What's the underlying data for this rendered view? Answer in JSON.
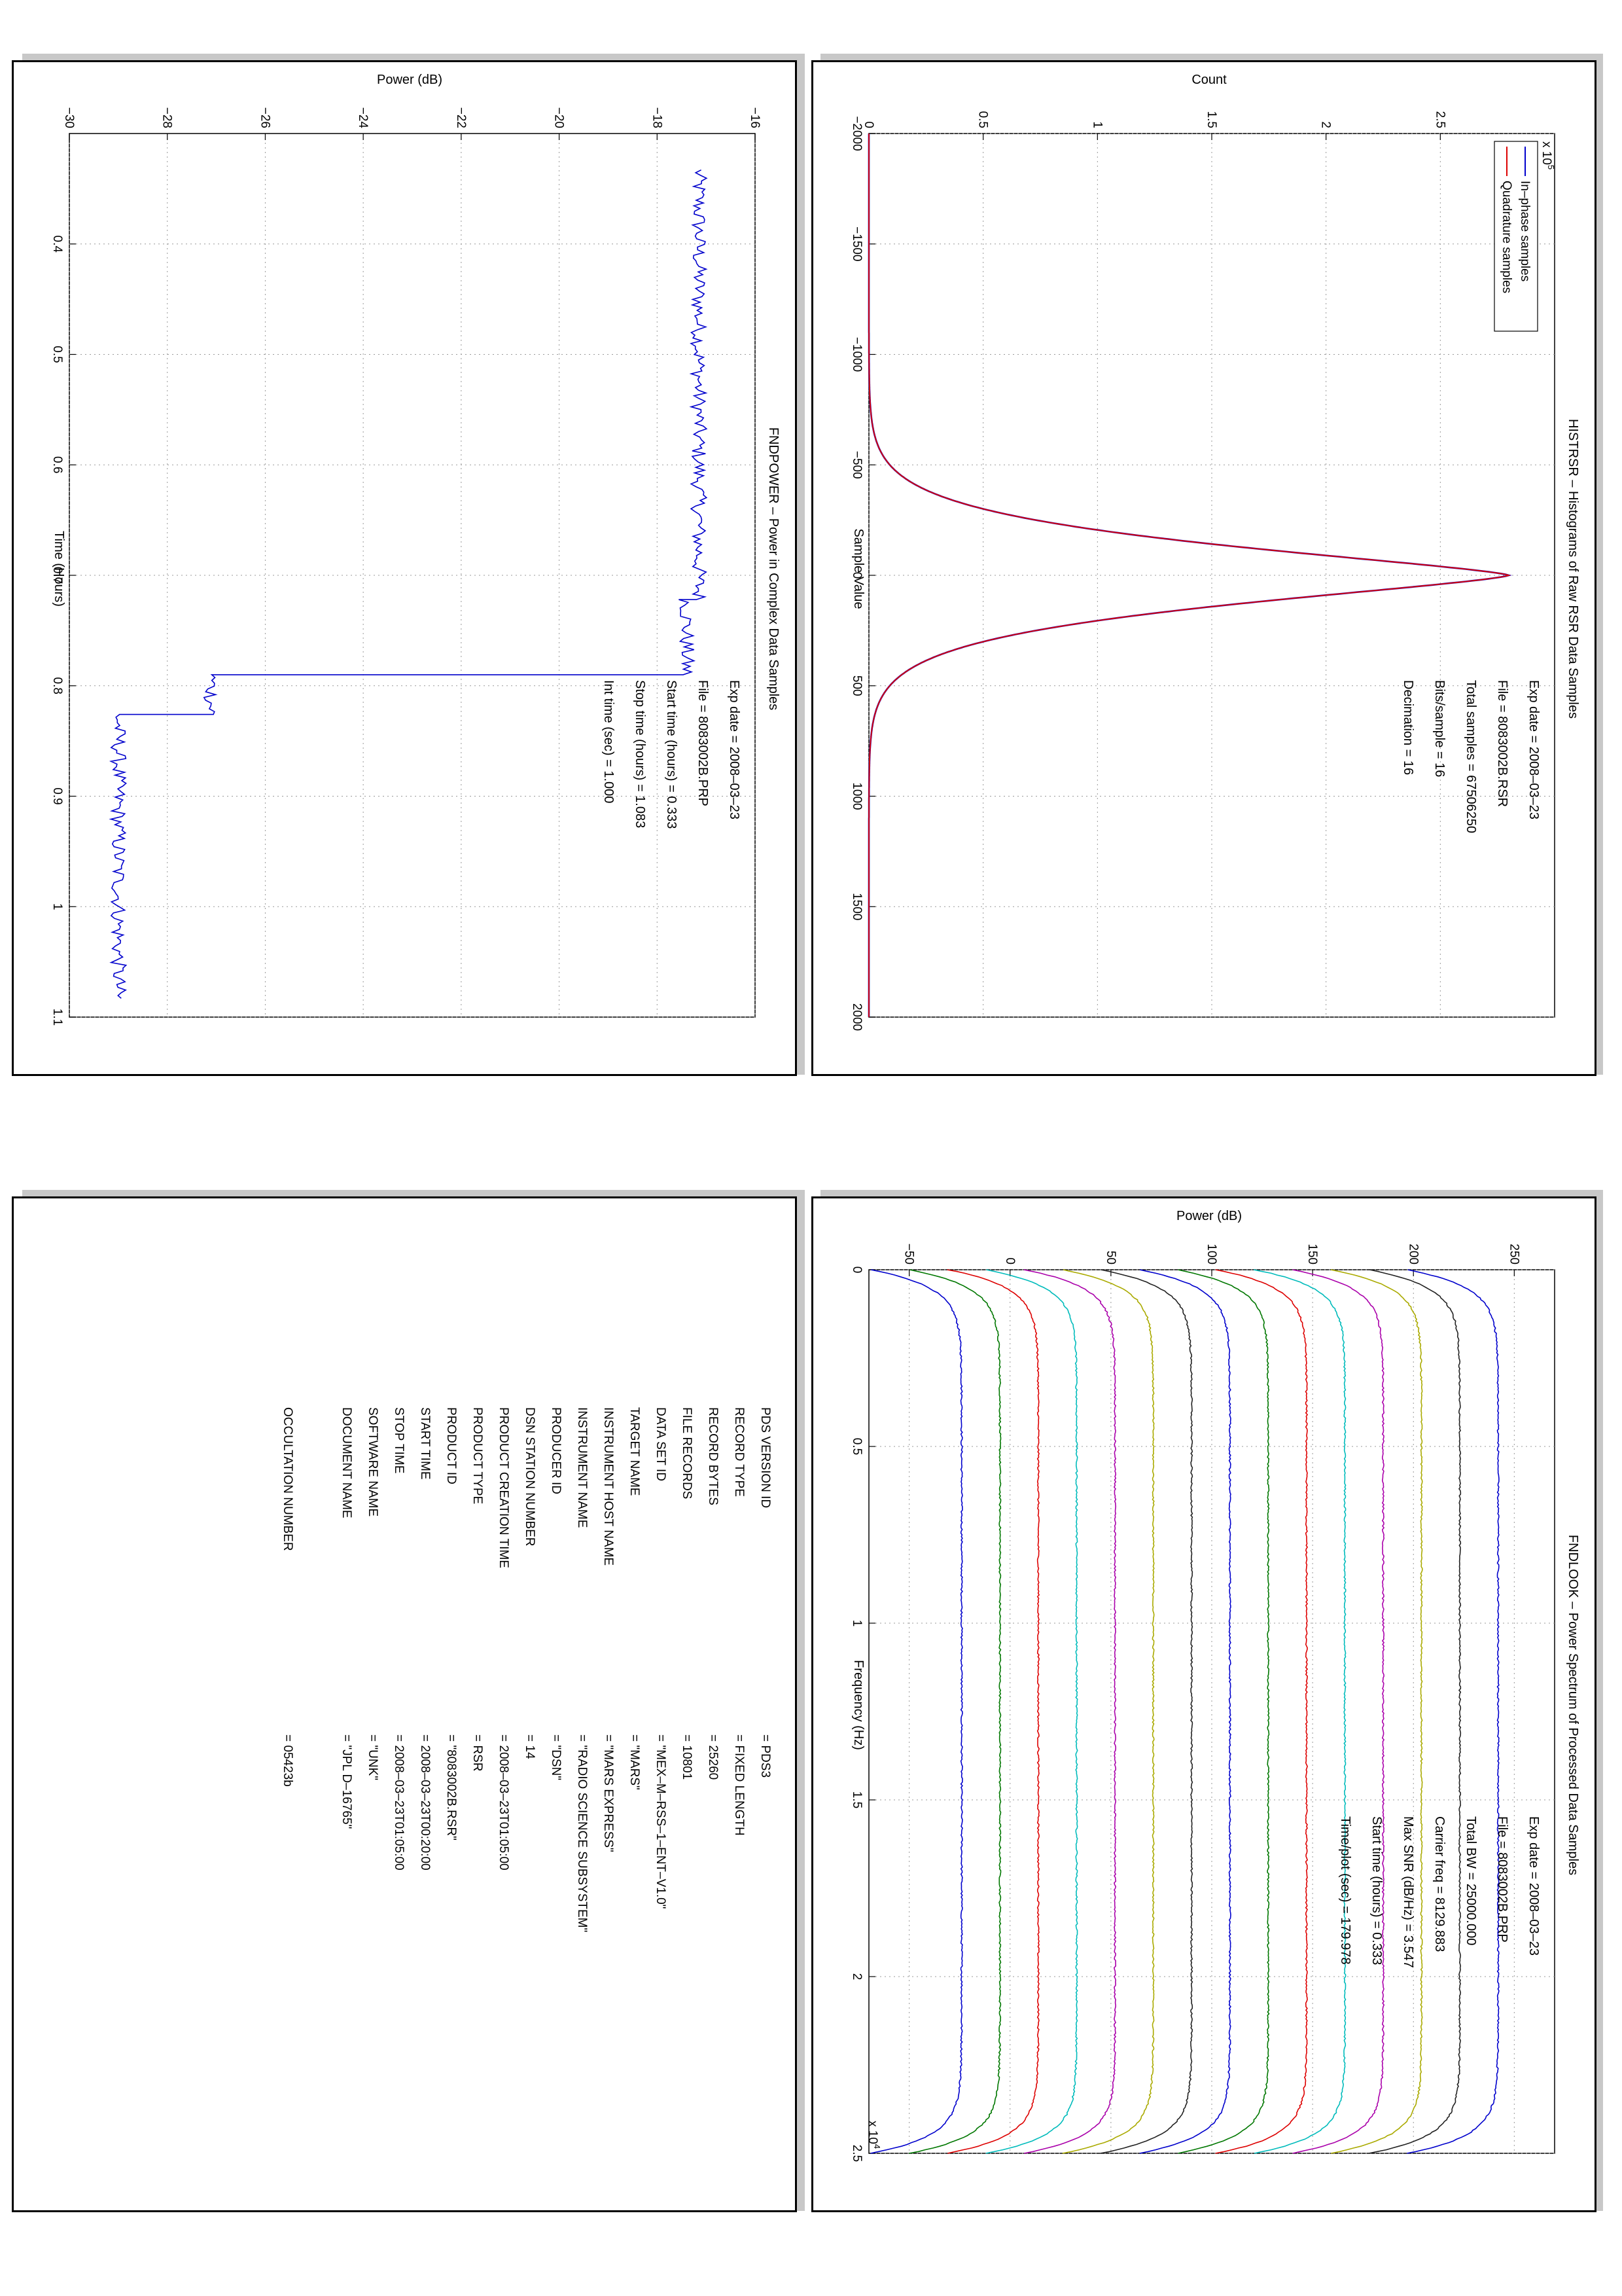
{
  "panels": {
    "histrsr": {
      "title": "HISTRSR – Histograms of Raw RSR Data Samples",
      "xlabel": "Sample Value",
      "ylabel": "Count",
      "exponent_label": "x 10",
      "exponent_power": "5",
      "info": [
        "Exp date = 2008–03–23",
        "File = 8083002B.RSR",
        "Total samples =  67506250",
        "Bits/sample   =        16",
        "Decimation   =        16"
      ],
      "legend": [
        "In–phase samples",
        "Quadrature samples"
      ]
    },
    "fndpower": {
      "title": "FNDPOWER – Power in Complex Data Samples",
      "xlabel": "Time (Hours)",
      "ylabel": "Power (dB)",
      "info": [
        "Exp date = 2008–03–23",
        "File = 8083002B.PRP",
        "Start time (hours) =  0.333",
        "Stop time (hours)  =  1.083",
        "Int time (sec)  =        1.000"
      ]
    },
    "fndlook": {
      "title": "FNDLOOK – Power Spectrum of Processed Data Samples",
      "xlabel": "Frequency (Hz)",
      "ylabel": "Power (dB)",
      "exponent_label": "x 10",
      "exponent_power": "4",
      "info": [
        "Exp date = 2008–03–23",
        "File = 8083002B.PRP",
        "Total BW =        25000.000",
        "Carrier freq =    8129.883",
        "Max SNR (dB/Hz) =    3.547",
        "Start time (hours) =    0.333",
        "Time/plot (sec) =    179.978"
      ]
    },
    "label": {
      "rows": [
        {
          "key": "PDS VERSION ID",
          "value": "=  PDS3"
        },
        {
          "key": "RECORD TYPE",
          "value": "=  FIXED LENGTH"
        },
        {
          "key": "RECORD BYTES",
          "value": "=  25260"
        },
        {
          "key": "FILE RECORDS",
          "value": "=  10801"
        },
        {
          "key": "DATA SET ID",
          "value": "=  \"MEX–M–RSS–1–ENT–V1.0\""
        },
        {
          "key": "TARGET NAME",
          "value": "=  \"MARS\""
        },
        {
          "key": "INSTRUMENT HOST NAME",
          "value": "=  \"MARS EXPRESS\""
        },
        {
          "key": "INSTRUMENT NAME",
          "value": "=  \"RADIO SCIENCE SUBSYSTEM\""
        },
        {
          "key": "PRODUCER ID",
          "value": "=  \"DSN\""
        },
        {
          "key": "DSN STATION NUMBER",
          "value": "=  14"
        },
        {
          "key": "PRODUCT CREATION TIME",
          "value": "=  2008–03–23T01:05:00"
        },
        {
          "key": "PRODUCT TYPE",
          "value": "=  RSR"
        },
        {
          "key": "PRODUCT ID",
          "value": "=  \"8083002B.RSR\""
        },
        {
          "key": "START TIME",
          "value": "=  2008–03–23T00:20:00"
        },
        {
          "key": "STOP TIME",
          "value": "=  2008–03–23T01:05:00"
        },
        {
          "key": "SOFTWARE NAME",
          "value": "=  \"UNK\""
        },
        {
          "key": "DOCUMENT NAME",
          "value": "=  \"JPL D–16765\""
        },
        {
          "key": "OCCULTATION NUMBER",
          "value": "=  05423b"
        }
      ]
    }
  },
  "chart_data": [
    {
      "type": "line",
      "title": "HISTRSR – Histograms of Raw RSR Data Samples",
      "xlabel": "Sample Value",
      "ylabel": "Count",
      "xlim": [
        -2000,
        2000
      ],
      "ylim": [
        0,
        300000
      ],
      "xticks": [
        -2000,
        -1500,
        -1000,
        -500,
        0,
        500,
        1000,
        1500,
        2000
      ],
      "yticks": [
        0,
        0.5,
        1,
        1.5,
        2,
        2.5
      ],
      "ytick_multiplier": 100000,
      "grid": true,
      "legend_position": "top-left",
      "series": [
        {
          "name": "In–phase samples",
          "color": "#0000cc",
          "peak_x": 0,
          "peak_count": 280000,
          "std": 230,
          "visible_under_quadrature": true
        },
        {
          "name": "Quadrature samples",
          "color": "#dd0000",
          "peak_x": 0,
          "peak_count": 280000,
          "std": 230
        }
      ]
    },
    {
      "type": "line",
      "title": "FNDPOWER – Power in Complex Data Samples",
      "xlabel": "Time (Hours)",
      "ylabel": "Power (dB)",
      "xlim": [
        0.3,
        1.1
      ],
      "ylim": [
        -30,
        -16
      ],
      "xticks": [
        0.4,
        0.5,
        0.6,
        0.7,
        0.8,
        0.9,
        1,
        1.1
      ],
      "yticks": [
        -30,
        -28,
        -26,
        -24,
        -22,
        -20,
        -18,
        -16
      ],
      "grid": true,
      "series": [
        {
          "name": "",
          "color": "#0000cc",
          "segments": [
            {
              "x_start": 0.333,
              "x_end": 0.722,
              "level": -17.15
            },
            {
              "x_start": 0.722,
              "x_end": 0.79,
              "level": -17.4
            },
            {
              "x_start": 0.79,
              "x_end": 0.826,
              "level": -27.1
            },
            {
              "x_start": 0.826,
              "x_end": 1.083,
              "level": -29.0
            }
          ]
        }
      ]
    },
    {
      "type": "line",
      "title": "FNDLOOK – Power Spectrum of Processed Data Samples",
      "xlabel": "Frequency (Hz)",
      "ylabel": "Power (dB)",
      "xlim": [
        0,
        25000
      ],
      "ylim": [
        -70,
        270
      ],
      "xticks": [
        0,
        0.5,
        1,
        1.5,
        2,
        2.5
      ],
      "xtick_multiplier": 10000,
      "yticks": [
        -50,
        0,
        50,
        100,
        150,
        200,
        250
      ],
      "grid": true,
      "series": [
        {
          "name": "",
          "color": "#0000cc",
          "level": -69
        },
        {
          "name": "",
          "color": "#007700",
          "level": -50
        },
        {
          "name": "",
          "color": "#dd0000",
          "level": -31
        },
        {
          "name": "",
          "color": "#00bbbb",
          "level": -12
        },
        {
          "name": "",
          "color": "#aa00aa",
          "level": 7
        },
        {
          "name": "",
          "color": "#aaaa00",
          "level": 26
        },
        {
          "name": "",
          "color": "#222222",
          "level": 45
        },
        {
          "name": "",
          "color": "#0000cc",
          "level": 64
        },
        {
          "name": "",
          "color": "#007700",
          "level": 83
        },
        {
          "name": "",
          "color": "#dd0000",
          "level": 102
        },
        {
          "name": "",
          "color": "#00bbbb",
          "level": 121
        },
        {
          "name": "",
          "color": "#aa00aa",
          "level": 140
        },
        {
          "name": "",
          "color": "#aaaa00",
          "level": 159
        },
        {
          "name": "",
          "color": "#222222",
          "level": 178
        },
        {
          "name": "",
          "color": "#0000cc",
          "level": 197
        }
      ]
    }
  ]
}
